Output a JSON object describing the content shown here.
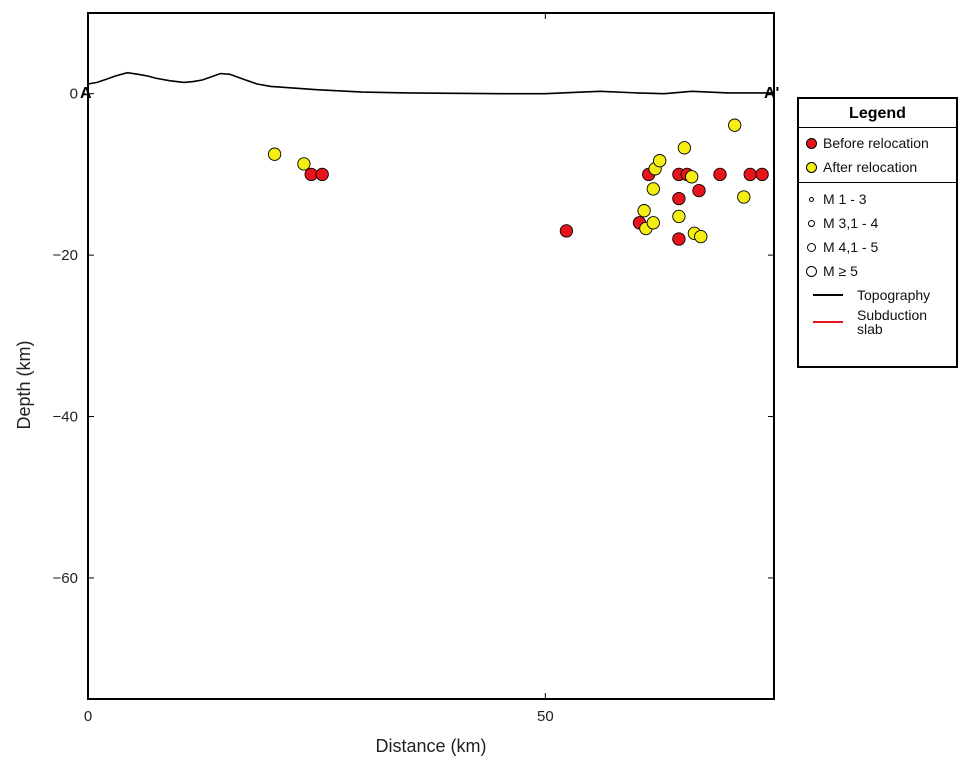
{
  "chart_data": {
    "type": "scatter",
    "title": "",
    "xlabel": "Distance (km)",
    "ylabel": "Depth (km)",
    "xlim": [
      0,
      75
    ],
    "ylim": [
      -75,
      10
    ],
    "x_ticks": [
      0,
      50
    ],
    "y_ticks": [
      0,
      -20,
      -40,
      -60
    ],
    "grid": false,
    "endpoints": {
      "start": "A",
      "end": "A'"
    },
    "topography": {
      "name": "Topography",
      "color": "#000000",
      "x": [
        0,
        1,
        2,
        3,
        4.3,
        5.5,
        6.5,
        7.5,
        9,
        10.5,
        11.5,
        12.5,
        14.5,
        15.5,
        17,
        18.5,
        20,
        25,
        30,
        35,
        40,
        45,
        50,
        54,
        56,
        60,
        63,
        66,
        70,
        75
      ],
      "y": [
        1.2,
        1.4,
        1.8,
        2.2,
        2.6,
        2.4,
        2.2,
        1.9,
        1.6,
        1.4,
        1.5,
        1.7,
        2.5,
        2.4,
        1.8,
        1.2,
        0.9,
        0.5,
        0.2,
        0.1,
        0.05,
        0.0,
        0.0,
        0.2,
        0.3,
        0.1,
        0.0,
        0.3,
        0.1,
        0.1
      ]
    },
    "series": [
      {
        "name": "Before relocation",
        "color": "#e8141c",
        "points": [
          {
            "x": 24.4,
            "y": -10.0
          },
          {
            "x": 25.6,
            "y": -10.0
          },
          {
            "x": 52.3,
            "y": -17.0
          },
          {
            "x": 60.3,
            "y": -16.0
          },
          {
            "x": 61.3,
            "y": -10.0
          },
          {
            "x": 64.6,
            "y": -10.0
          },
          {
            "x": 65.5,
            "y": -10.0
          },
          {
            "x": 64.6,
            "y": -13.0
          },
          {
            "x": 66.8,
            "y": -12.0
          },
          {
            "x": 64.6,
            "y": -18.0
          },
          {
            "x": 69.1,
            "y": -10.0
          },
          {
            "x": 72.4,
            "y": -10.0
          },
          {
            "x": 73.7,
            "y": -10.0
          }
        ]
      },
      {
        "name": "After relocation",
        "color": "#f5ee14",
        "points": [
          {
            "x": 20.4,
            "y": -7.5
          },
          {
            "x": 23.6,
            "y": -8.7
          },
          {
            "x": 62.0,
            "y": -9.3
          },
          {
            "x": 62.5,
            "y": -8.3
          },
          {
            "x": 61.8,
            "y": -11.8
          },
          {
            "x": 65.2,
            "y": -6.7
          },
          {
            "x": 66.0,
            "y": -10.3
          },
          {
            "x": 60.8,
            "y": -14.5
          },
          {
            "x": 61.0,
            "y": -16.7
          },
          {
            "x": 61.8,
            "y": -16.0
          },
          {
            "x": 64.6,
            "y": -15.2
          },
          {
            "x": 66.3,
            "y": -17.3
          },
          {
            "x": 67.0,
            "y": -17.7
          },
          {
            "x": 70.7,
            "y": -3.9
          },
          {
            "x": 71.7,
            "y": -12.8
          }
        ]
      }
    ],
    "legend": {
      "title": "Legend",
      "placement": "right-outside",
      "entries": [
        {
          "label": "Before relocation",
          "kind": "dot",
          "color": "#e8141c"
        },
        {
          "label": "After relocation",
          "kind": "dot",
          "color": "#f5ee14"
        }
      ],
      "magnitudes": [
        {
          "label": "M 1 - 3",
          "size": "xs"
        },
        {
          "label": "M 3,1 - 4",
          "size": "s"
        },
        {
          "label": "M 4,1 - 5",
          "size": "m"
        },
        {
          "label": "M ≥ 5",
          "size": "l"
        }
      ],
      "lines": [
        {
          "label": "Topography",
          "color": "#000000"
        },
        {
          "label": "Subduction slab",
          "color": "#e8141c"
        }
      ]
    }
  }
}
